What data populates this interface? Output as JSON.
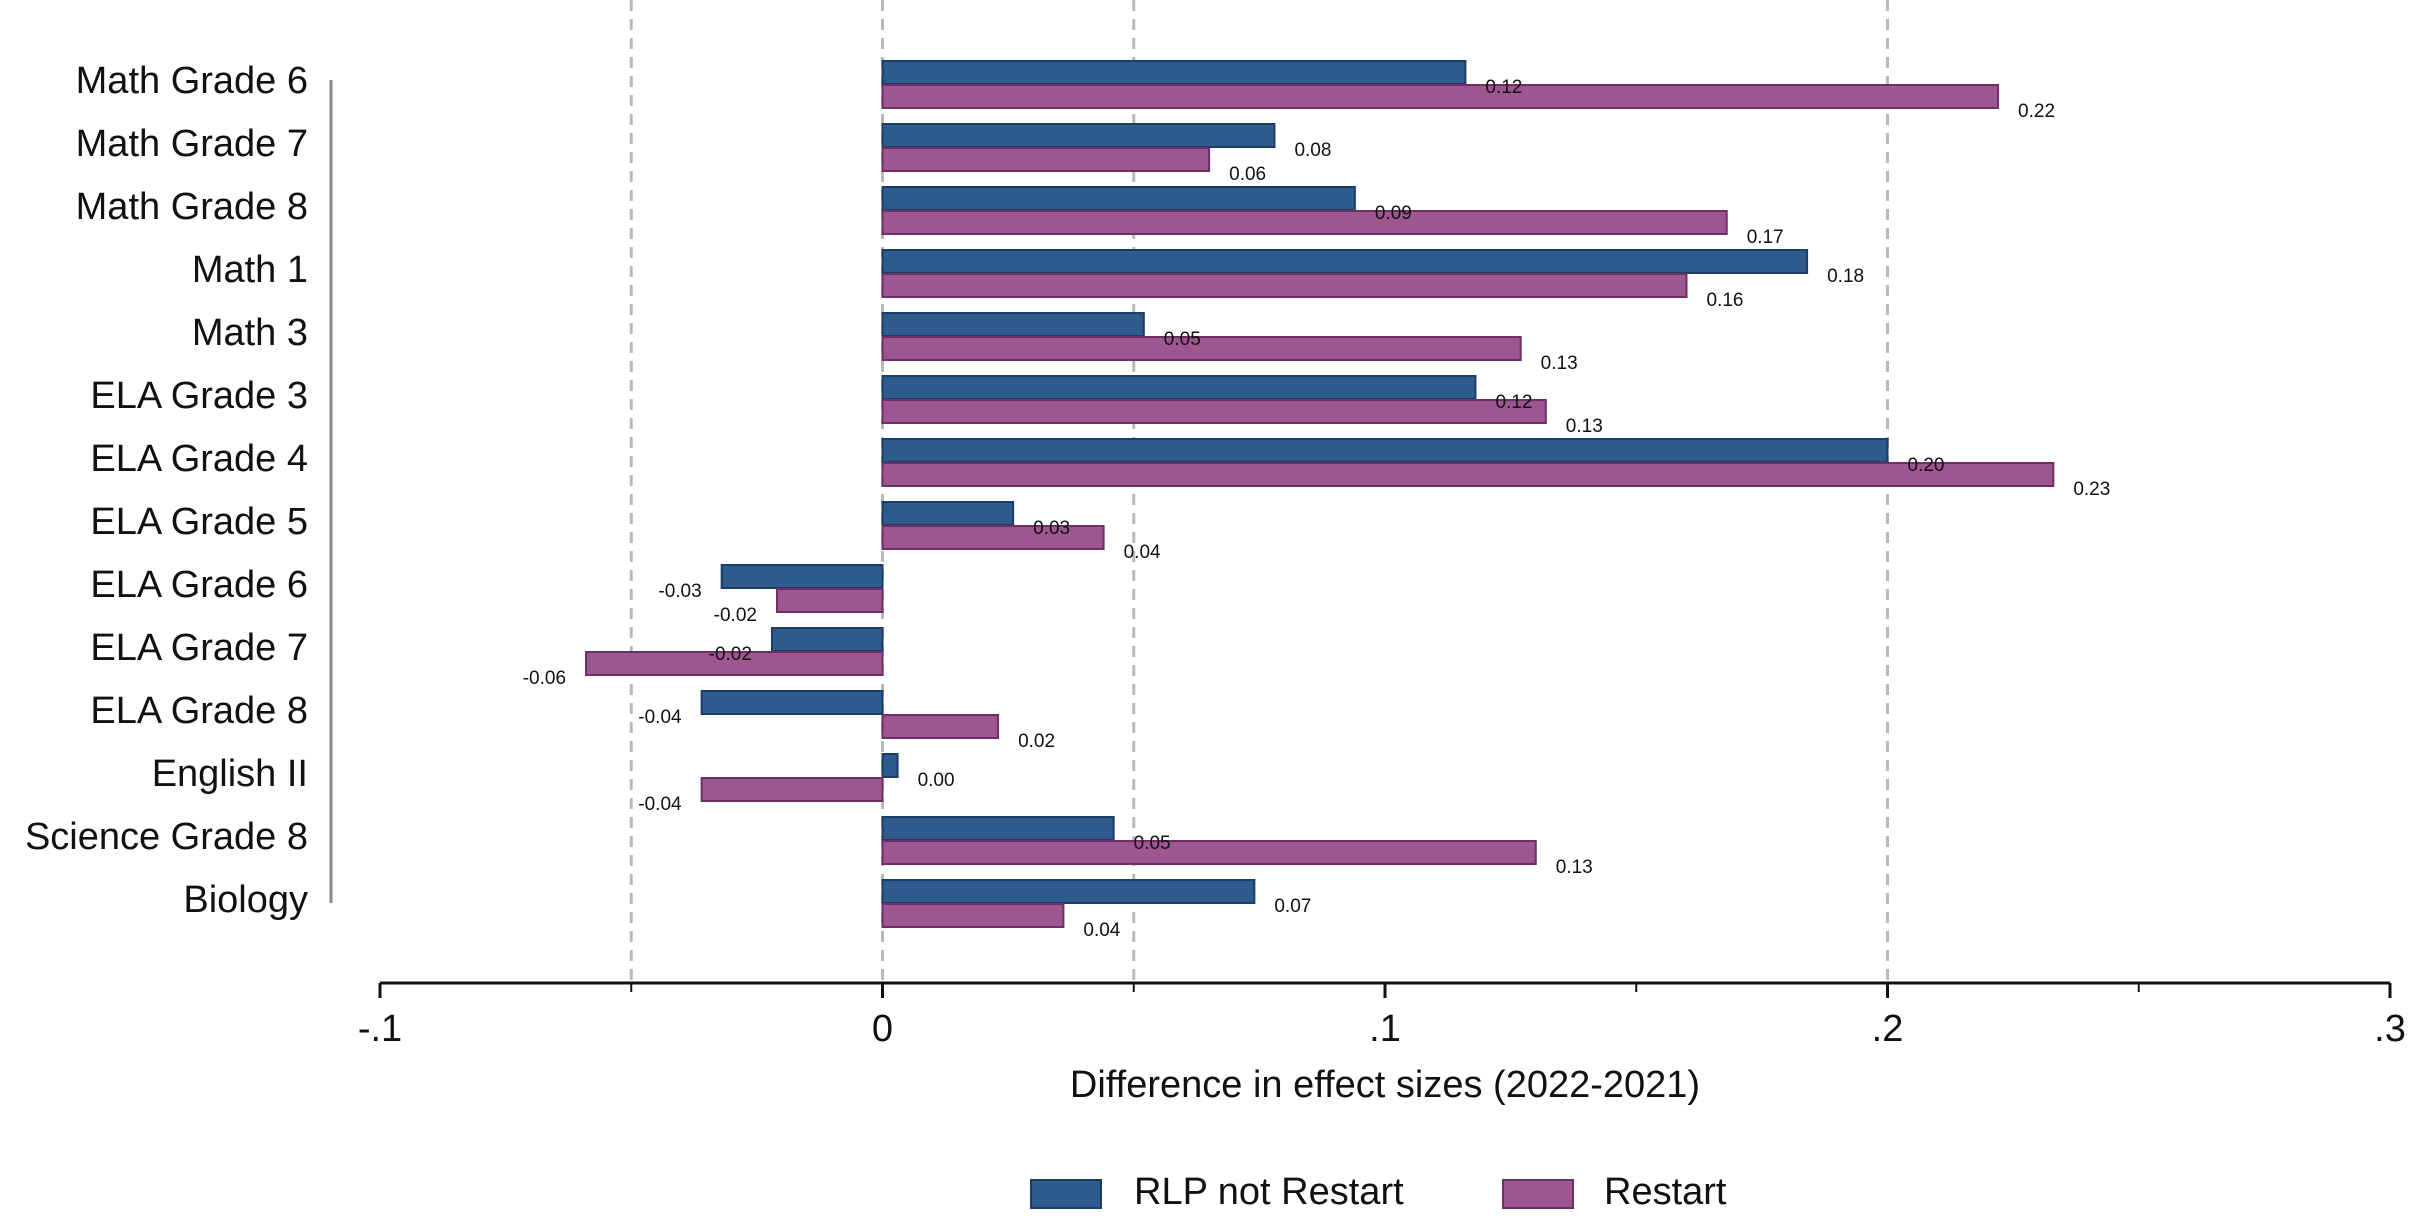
{
  "chart_data": {
    "type": "bar",
    "orientation": "horizontal",
    "categories": [
      "Math Grade 6",
      "Math Grade 7",
      "Math Grade 8",
      "Math 1",
      "Math 3",
      "ELA Grade 3",
      "ELA Grade 4",
      "ELA Grade 5",
      "ELA Grade 6",
      "ELA Grade 7",
      "ELA Grade 8",
      "English II",
      "Science Grade 8",
      "Biology"
    ],
    "series": [
      {
        "name": "RLP not Restart",
        "color": "#2c5b8c",
        "values": [
          0.116,
          0.078,
          0.094,
          0.184,
          0.052,
          0.118,
          0.2,
          0.026,
          -0.032,
          -0.022,
          -0.036,
          0.003,
          0.046,
          0.074
        ],
        "labels": [
          "0.12",
          "0.08",
          "0.09",
          "0.18",
          "0.05",
          "0.12",
          "0.20",
          "0.03",
          "-0.03",
          "-0.02",
          "-0.04",
          "0.00",
          "0.05",
          "0.07"
        ]
      },
      {
        "name": "Restart",
        "color": "#9e5690",
        "values": [
          0.222,
          0.065,
          0.168,
          0.16,
          0.127,
          0.132,
          0.233,
          0.044,
          -0.021,
          -0.059,
          0.023,
          -0.036,
          0.13,
          0.036
        ],
        "labels": [
          "0.22",
          "0.06",
          "0.17",
          "0.16",
          "0.13",
          "0.13",
          "0.23",
          "0.04",
          "-0.02",
          "-0.06",
          "0.02",
          "-0.04",
          "0.13",
          "0.04"
        ]
      }
    ],
    "xlabel": "Difference in effect sizes (2022-2021)",
    "xlim": [
      -0.1,
      0.3
    ],
    "xticks": [
      -0.1,
      0,
      0.1,
      0.2,
      0.3
    ],
    "xtick_labels": [
      "-.1",
      "0",
      ".1",
      ".2",
      ".3"
    ],
    "minor_xticks": [
      -0.05,
      0.05,
      0.15,
      0.25
    ],
    "reference_lines": [
      -0.05,
      0,
      0.05,
      0.2
    ],
    "legend_position": "bottom"
  }
}
